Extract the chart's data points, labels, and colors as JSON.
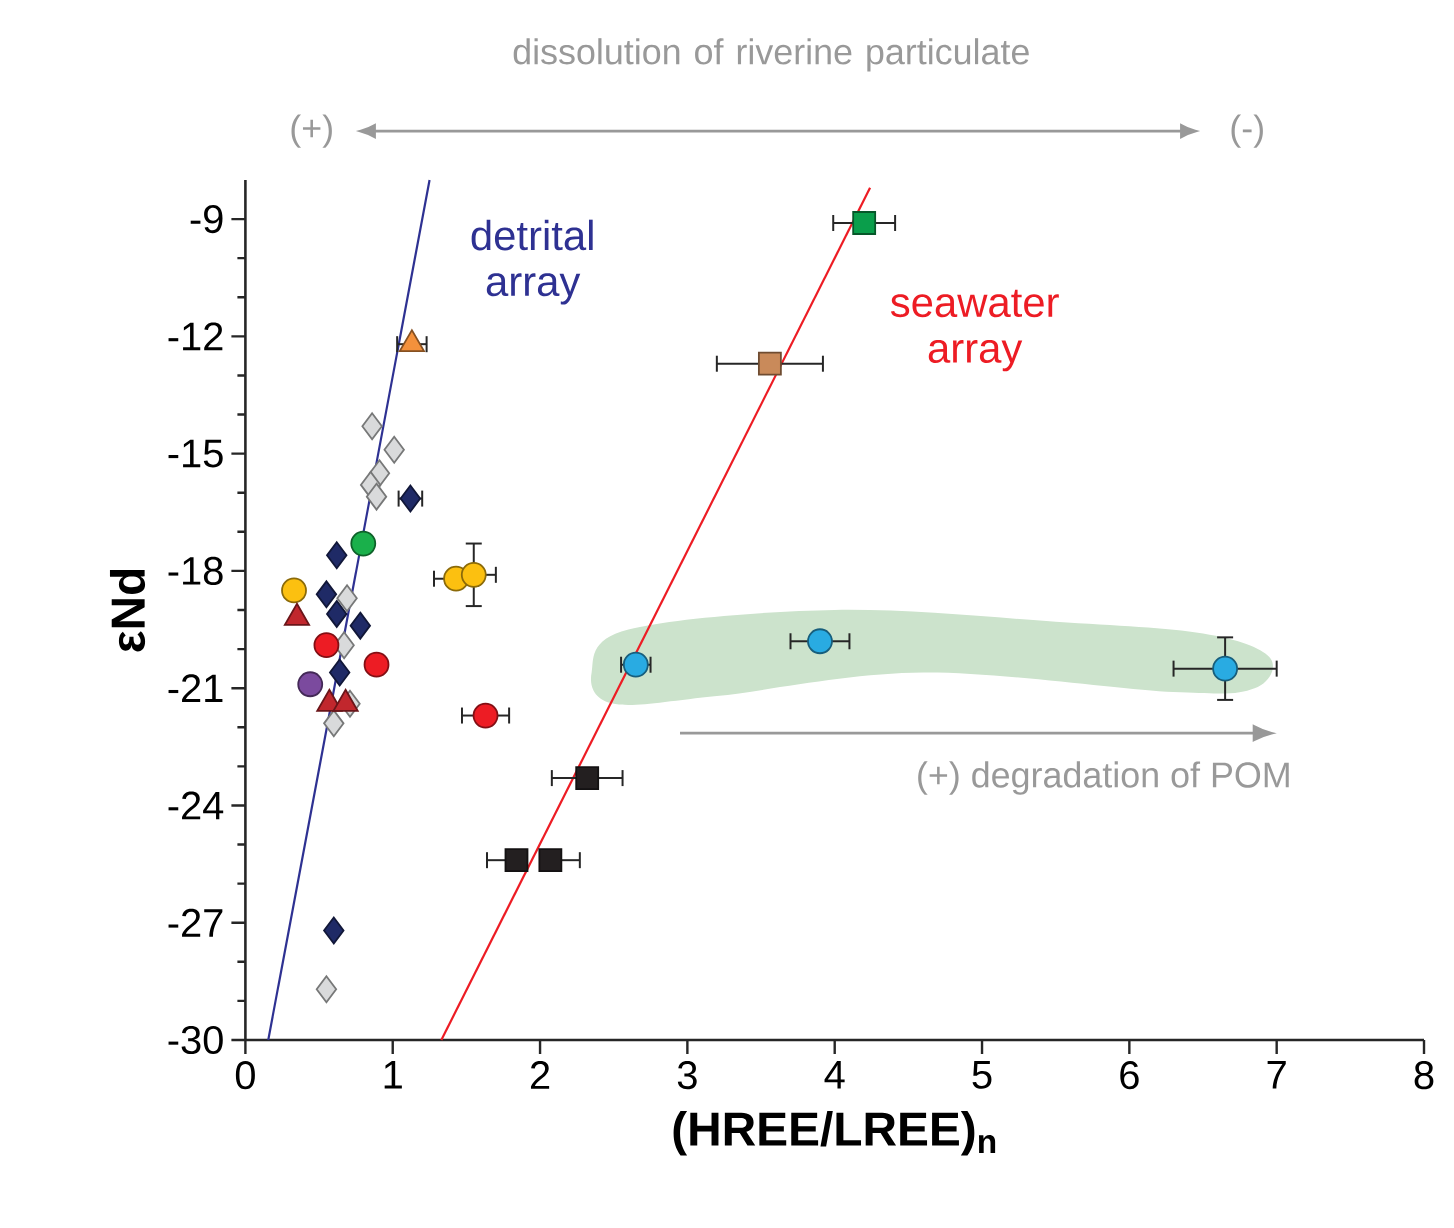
{
  "chart_data": {
    "type": "scatter",
    "xlabel": "(HREE/LREE)$_{n}$",
    "ylabel": "εNd",
    "xlim": [
      0,
      8
    ],
    "ylim": [
      -30,
      -8
    ],
    "xticks": [
      0,
      1,
      2,
      3,
      4,
      5,
      6,
      7,
      8
    ],
    "yticks": [
      -30,
      -27,
      -24,
      -21,
      -18,
      -15,
      -12,
      -9
    ],
    "grid": false,
    "annotations": [
      "dissolution of riverine particulate",
      "(+)",
      "(-)",
      "(+) degradation of POM"
    ],
    "series": [
      {
        "color": "#1f2a66",
        "marker": "diamond",
        "x": [
          1.12,
          0.62,
          0.55,
          0.62,
          0.78,
          0.64,
          0.6
        ],
        "values": [
          -16.15,
          -17.6,
          -18.6,
          -19.1,
          -19.4,
          -20.6,
          -27.2
        ],
        "xerrors": [
          0.08,
          null,
          null,
          null,
          null,
          null,
          null
        ]
      },
      {
        "color": "#d9dadb",
        "marker": "diamond",
        "x": [
          0.86,
          1.01,
          0.91,
          0.85,
          0.89,
          0.69,
          0.67,
          0.71,
          0.6,
          0.55
        ],
        "values": [
          -14.3,
          -14.9,
          -15.5,
          -15.8,
          -16.1,
          -18.7,
          -19.9,
          -21.4,
          -21.9,
          -28.7
        ]
      },
      {
        "color": "#f4913c",
        "marker": "triangle",
        "x": [
          1.13
        ],
        "values": [
          -12.2
        ],
        "xerrors": [
          0.1
        ]
      },
      {
        "color": "#1ab04b",
        "marker": "circle",
        "x": [
          0.8
        ],
        "values": [
          -17.3
        ]
      },
      {
        "color": "#fcc010",
        "marker": "circle",
        "x": [
          0.33,
          1.43,
          1.55
        ],
        "values": [
          -18.5,
          -18.2,
          -18.1
        ],
        "xerrors": [
          null,
          0.15,
          0.15
        ],
        "errors": [
          null,
          null,
          0.8
        ]
      },
      {
        "color": "#ed1c24",
        "marker": "circle",
        "x": [
          0.55,
          0.89,
          1.63
        ],
        "values": [
          -19.9,
          -20.4,
          -21.7
        ],
        "xerrors": [
          null,
          null,
          0.16
        ]
      },
      {
        "color": "#7b4a9e",
        "marker": "circle",
        "x": [
          0.44
        ],
        "values": [
          -20.9
        ]
      },
      {
        "color": "#c1272d",
        "marker": "triangle",
        "x": [
          0.35,
          0.57,
          0.68
        ],
        "values": [
          -19.2,
          -21.4,
          -21.4
        ]
      },
      {
        "color": "#0a9e4b",
        "marker": "square",
        "x": [
          4.2
        ],
        "values": [
          -9.1
        ],
        "xerrors": [
          0.21
        ]
      },
      {
        "color": "#c98a5a",
        "marker": "square",
        "x": [
          3.56
        ],
        "values": [
          -12.7
        ],
        "xerrors": [
          0.36
        ]
      },
      {
        "color": "#231f20",
        "marker": "square",
        "x": [
          2.32,
          1.84,
          2.07
        ],
        "values": [
          -23.3,
          -25.4,
          -25.4
        ],
        "xerrors": [
          0.24,
          [
            1.64,
            1.84
          ],
          [
            2.07,
            2.27
          ]
        ]
      },
      {
        "color": "#29abe2",
        "marker": "circle",
        "x": [
          2.65,
          3.9,
          6.65
        ],
        "values": [
          -20.4,
          -19.8,
          -20.5
        ],
        "xerrors": [
          0.1,
          0.2,
          0.35
        ],
        "errors": [
          null,
          null,
          0.8
        ]
      },
      {
        "type": "line",
        "name": "detrital array",
        "color": "#2e3192",
        "marker": "none",
        "x": [
          0.155,
          1.25
        ],
        "values": [
          -30,
          -8
        ]
      },
      {
        "type": "line",
        "name": "seawater array",
        "color": "#ed1c24",
        "marker": "none",
        "x": [
          1.33,
          4.24
        ],
        "values": [
          -30,
          -8.2
        ]
      }
    ]
  }
}
